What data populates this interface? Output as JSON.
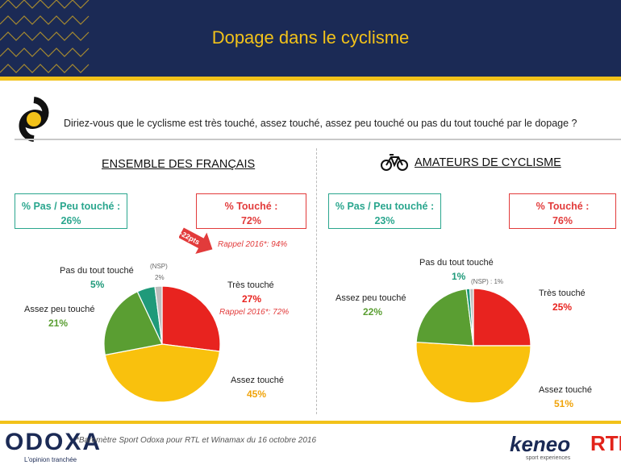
{
  "header": {
    "title": "Dopage dans le cyclisme"
  },
  "question": "Diriez-vous que le cyclisme est très touché, assez touché, assez peu touché ou pas du tout touché par le dopage ?",
  "left": {
    "section_title": "ENSEMBLE DES FRANÇAIS",
    "box_green": {
      "label": "% Pas / Peu touché :",
      "value": "26%"
    },
    "box_red": {
      "label": "% Touché :",
      "value": "72%"
    },
    "arrow_label": "-22pts",
    "recall_total": "Rappel 2016*: 94%",
    "recall_tres": "Rappel 2016*: 72%"
  },
  "right": {
    "section_title": "AMATEURS DE CYCLISME",
    "box_green": {
      "label": "% Pas / Peu touché :",
      "value": "23%"
    },
    "box_red": {
      "label": "% Touché :",
      "value": "76%"
    }
  },
  "colors": {
    "tres": "#e8231f",
    "assez": "#f9c10d",
    "assez_peu": "#5a9e32",
    "pas_du_tout": "#1f9a7a",
    "nsp": "#bdbdbd"
  },
  "chart_data": [
    {
      "type": "pie",
      "title": "ENSEMBLE DES FRANÇAIS",
      "slices": [
        {
          "label": "Très touché",
          "value": 27,
          "text": "27%"
        },
        {
          "label": "Assez touché",
          "value": 45,
          "text": "45%"
        },
        {
          "label": "Assez peu touché",
          "value": 21,
          "text": "21%"
        },
        {
          "label": "Pas du tout touché",
          "value": 5,
          "text": "5%"
        },
        {
          "label": "(NSP)",
          "value": 2,
          "text": "2%"
        }
      ]
    },
    {
      "type": "pie",
      "title": "AMATEURS DE CYCLISME",
      "slices": [
        {
          "label": "Très touché",
          "value": 25,
          "text": "25%"
        },
        {
          "label": "Assez touché",
          "value": 51,
          "text": "51%"
        },
        {
          "label": "Assez peu touché",
          "value": 22,
          "text": "22%"
        },
        {
          "label": "Pas du tout touché",
          "value": 1,
          "text": "1%"
        },
        {
          "label": "(NSP)",
          "value": 1,
          "text": "1%"
        }
      ]
    }
  ],
  "footer": {
    "logo": "ODOXA",
    "tagline": "L'opinion tranchée",
    "source": "*Baromètre Sport Odoxa pour RTL et Winamax du 16 octobre 2016",
    "partner1": "keneo",
    "partner1_tag": "sport experiences",
    "partner2": "RTL"
  }
}
